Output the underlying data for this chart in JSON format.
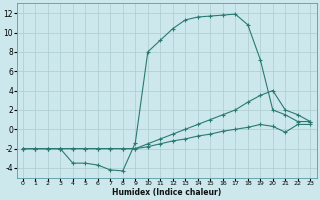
{
  "xlabel": "Humidex (Indice chaleur)",
  "bg_color": "#cce8ec",
  "grid_color": "#aacccc",
  "line_color": "#2a7a72",
  "xlim": [
    -0.5,
    23.5
  ],
  "ylim": [
    -5,
    13
  ],
  "xticks": [
    0,
    1,
    2,
    3,
    4,
    5,
    6,
    7,
    8,
    9,
    10,
    11,
    12,
    13,
    14,
    15,
    16,
    17,
    18,
    19,
    20,
    21,
    22,
    23
  ],
  "yticks": [
    -4,
    -2,
    0,
    2,
    4,
    6,
    8,
    10,
    12
  ],
  "line1_x": [
    0,
    1,
    2,
    3,
    4,
    5,
    6,
    7,
    8,
    9,
    10,
    11,
    12,
    13,
    14,
    15,
    16,
    17,
    18,
    19,
    20,
    21,
    22,
    23
  ],
  "line1_y": [
    -2,
    -2,
    -2,
    -2,
    -3.5,
    -3.5,
    -3.7,
    -4.2,
    -4.3,
    -1.4,
    8.0,
    9.2,
    10.4,
    11.3,
    11.6,
    11.7,
    11.8,
    11.9,
    10.8,
    7.2,
    2.0,
    1.5,
    0.8,
    0.8
  ],
  "line2_x": [
    0,
    1,
    2,
    3,
    4,
    5,
    6,
    7,
    8,
    9,
    10,
    11,
    12,
    13,
    14,
    15,
    16,
    17,
    18,
    19,
    20,
    21,
    22,
    23
  ],
  "line2_y": [
    -2,
    -2,
    -2,
    -2,
    -2,
    -2,
    -2,
    -2,
    -2,
    -2,
    -1.5,
    -1.0,
    -0.5,
    0.0,
    0.5,
    1.0,
    1.5,
    2.0,
    2.8,
    3.5,
    4.0,
    2.0,
    1.5,
    0.8
  ],
  "line3_x": [
    0,
    1,
    2,
    3,
    4,
    5,
    6,
    7,
    8,
    9,
    10,
    11,
    12,
    13,
    14,
    15,
    16,
    17,
    18,
    19,
    20,
    21,
    22,
    23
  ],
  "line3_y": [
    -2,
    -2,
    -2,
    -2,
    -2,
    -2,
    -2,
    -2,
    -2,
    -2,
    -1.8,
    -1.5,
    -1.2,
    -1.0,
    -0.7,
    -0.5,
    -0.2,
    0.0,
    0.2,
    0.5,
    0.3,
    -0.3,
    0.5,
    0.5
  ]
}
